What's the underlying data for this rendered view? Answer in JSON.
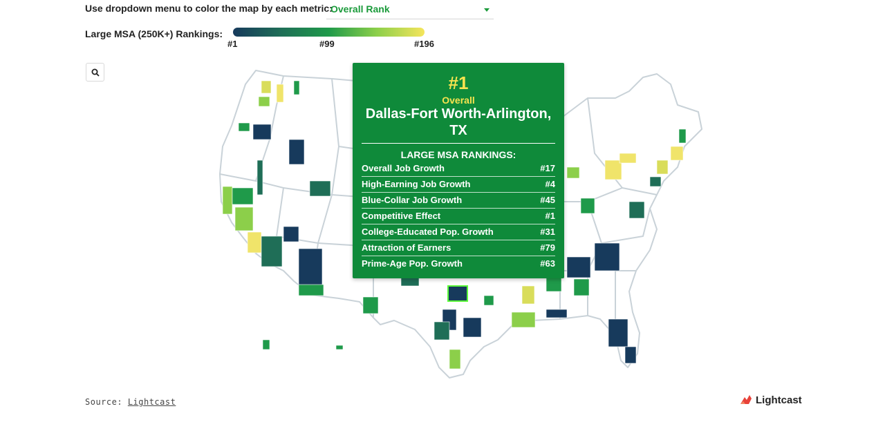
{
  "control": {
    "label": "Use dropdown menu to color the map by each metric:",
    "selected": "Overall Rank"
  },
  "legend": {
    "label": "Large MSA (250K+) Rankings:",
    "ticks": [
      "#1",
      "#99",
      "#196"
    ],
    "colors": [
      "#173a5c",
      "#1f6e57",
      "#1f9a4a",
      "#8ccf4a",
      "#f5e55c"
    ]
  },
  "search": {
    "icon": "search-icon"
  },
  "tooltip": {
    "rank": "#1",
    "metric": "Overall",
    "msa_name": "Dallas-Fort Worth-Arlington, TX",
    "heading": "LARGE MSA RANKINGS:",
    "rows": [
      {
        "label": "Overall Job Growth",
        "value": "#17"
      },
      {
        "label": "High-Earning Job Growth",
        "value": "#4"
      },
      {
        "label": "Blue-Collar Job Growth",
        "value": "#45"
      },
      {
        "label": "Competitive Effect",
        "value": "#1"
      },
      {
        "label": "College-Educated Pop. Growth",
        "value": "#31"
      },
      {
        "label": "Attraction of Earners",
        "value": "#79"
      },
      {
        "label": "Prime-Age Pop. Growth",
        "value": "#63"
      }
    ]
  },
  "source": {
    "prefix": "Source:",
    "link": "Lightcast"
  },
  "brand": {
    "name": "Lightcast",
    "color": "#e8423a"
  }
}
